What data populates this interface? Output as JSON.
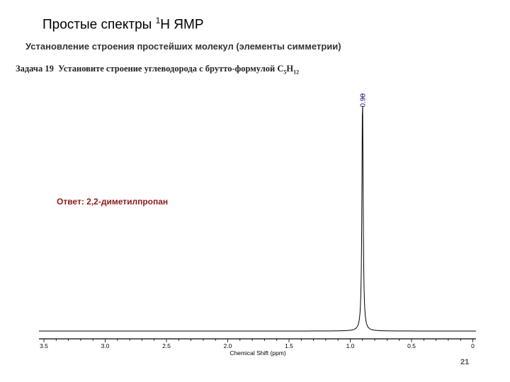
{
  "slide": {
    "title_main": "Простые спектры ",
    "title_sup": "1",
    "title_end": "Н ЯМР",
    "subtitle": "Установление строения простейших молекул (элементы симметрии)",
    "task_prefix": "Задача 19",
    "task_text": "Установите строение углеводорода с брутто-формулой С",
    "task_sub1": "5",
    "task_h": "Н",
    "task_sub2": "12",
    "answer": "Ответ: 2,2-диметилпропан",
    "page_number": "21"
  },
  "chart_data": {
    "type": "line",
    "title": "",
    "xlabel": "Chemical Shift (ppm)",
    "ylabel": "",
    "xlim": [
      3.6,
      0.0
    ],
    "x_reversed": true,
    "x_ticks": [
      3.5,
      3.0,
      2.5,
      2.0,
      1.5,
      1.0,
      0.5,
      0
    ],
    "x_tick_labels": [
      "3.5",
      "3.0",
      "2.5",
      "2.0",
      "1.5",
      "1.0",
      "0.5",
      "0"
    ],
    "grid": false,
    "peaks": [
      {
        "shift": 0.9,
        "relative_intensity": 1.0,
        "multiplicity": "singlet",
        "label": "0.90"
      }
    ],
    "line_color": "#000000",
    "label_color": "#1a237e"
  }
}
